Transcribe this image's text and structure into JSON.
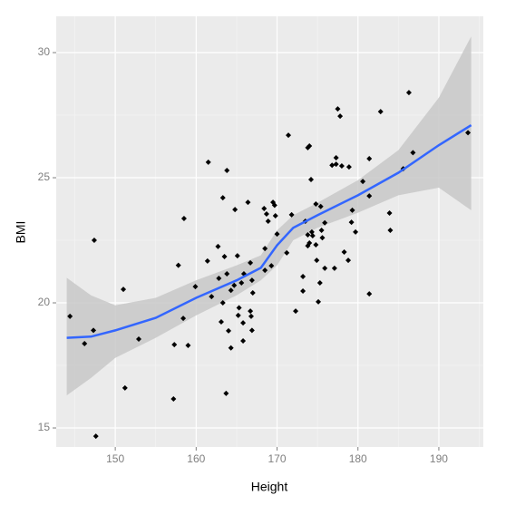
{
  "chart_data": {
    "type": "scatter",
    "x_label": "Height",
    "y_label": "BMI",
    "color": "#000000",
    "x": [
      144.4,
      146.2,
      147.4,
      147.3,
      147.6,
      151.0,
      151.2,
      152.9,
      157.2,
      157.3,
      157.8,
      158.5,
      158.4,
      159.0,
      159.9,
      161.4,
      161.5,
      161.9,
      162.7,
      162.8,
      163.1,
      163.3,
      163.3,
      163.5,
      163.8,
      163.8,
      163.7,
      164.0,
      164.3,
      164.3,
      164.7,
      164.8,
      165.1,
      165.2,
      165.3,
      165.6,
      165.8,
      165.9,
      165.8,
      166.4,
      166.7,
      166.7,
      166.8,
      166.9,
      167.0,
      166.9,
      168.4,
      168.5,
      168.5,
      168.7,
      168.9,
      169.3,
      169.5,
      169.7,
      169.8,
      170.0,
      171.2,
      171.4,
      171.8,
      172.3,
      173.2,
      173.2,
      173.5,
      173.8,
      173.8,
      173.8,
      174.0,
      174.0,
      174.2,
      174.3,
      174.4,
      174.8,
      174.9,
      174.8,
      175.1,
      175.3,
      175.4,
      175.5,
      175.6,
      175.9,
      175.9,
      176.8,
      177.1,
      177.3,
      177.3,
      177.5,
      177.8,
      178.0,
      178.3,
      178.8,
      178.9,
      179.2,
      179.3,
      179.7,
      180.6,
      181.4,
      181.4,
      181.4,
      182.8,
      183.9,
      184.0,
      185.6,
      186.3,
      186.8,
      193.6
    ],
    "values": [
      19.46,
      18.37,
      22.5,
      18.9,
      14.67,
      20.54,
      16.6,
      18.55,
      16.16,
      18.33,
      21.5,
      23.37,
      19.38,
      18.3,
      20.65,
      21.67,
      25.62,
      20.25,
      22.25,
      20.98,
      19.24,
      24.2,
      20.0,
      21.85,
      25.29,
      21.16,
      16.38,
      18.88,
      20.5,
      18.2,
      20.7,
      23.73,
      21.88,
      19.5,
      19.8,
      20.8,
      18.48,
      21.16,
      19.2,
      24.02,
      21.6,
      19.67,
      19.46,
      18.9,
      20.4,
      20.9,
      23.77,
      21.3,
      22.17,
      23.55,
      23.26,
      21.48,
      24.02,
      23.9,
      23.48,
      22.75,
      22.0,
      26.7,
      23.52,
      19.67,
      21.05,
      20.47,
      23.26,
      26.2,
      22.72,
      22.28,
      26.27,
      22.39,
      24.93,
      22.83,
      22.68,
      23.95,
      21.7,
      22.32,
      20.04,
      20.8,
      23.85,
      22.9,
      22.6,
      23.2,
      21.38,
      25.5,
      21.38,
      25.54,
      25.8,
      27.75,
      27.46,
      25.47,
      22.03,
      21.7,
      25.43,
      23.22,
      23.7,
      22.83,
      24.85,
      25.76,
      24.27,
      20.36,
      27.64,
      23.59,
      22.9,
      25.36,
      28.4,
      26.0,
      26.8
    ],
    "smooth": {
      "color": "#3366ff",
      "band_color": "#c8c8c8",
      "x": [
        144,
        147,
        150,
        155,
        160,
        165,
        168,
        170,
        172,
        175,
        180,
        185,
        190,
        194
      ],
      "values": [
        18.6,
        18.65,
        18.9,
        19.4,
        20.2,
        20.9,
        21.4,
        22.3,
        23.0,
        23.5,
        24.3,
        25.2,
        26.3,
        27.1
      ],
      "lower": [
        16.3,
        17.0,
        17.8,
        18.6,
        19.5,
        20.3,
        20.9,
        21.5,
        22.5,
        23.0,
        23.6,
        24.3,
        24.6,
        23.7
      ],
      "upper": [
        21.0,
        20.3,
        19.9,
        20.2,
        20.9,
        21.5,
        21.9,
        22.9,
        23.5,
        24.0,
        24.9,
        26.1,
        28.2,
        30.65
      ]
    },
    "xlim": [
      142.7,
      195.5
    ],
    "ylim": [
      14.24,
      31.45
    ],
    "xticks": [
      150,
      160,
      170,
      180,
      190
    ],
    "yticks": [
      15,
      20,
      25,
      30
    ],
    "x_minor_ticks": [
      145,
      155,
      165,
      175,
      185,
      195
    ],
    "y_minor_ticks": [
      17.5,
      22.5,
      27.5
    ],
    "grid": true
  }
}
